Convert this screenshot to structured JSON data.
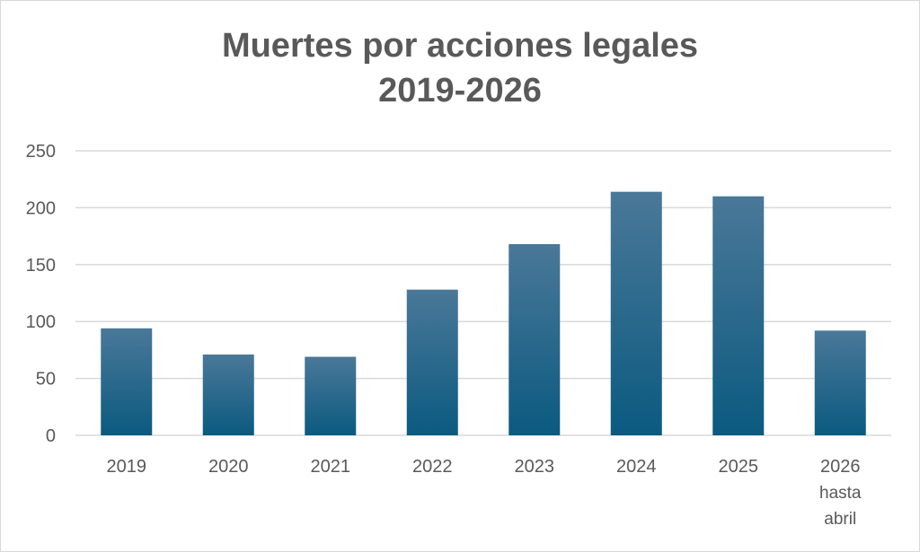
{
  "chart_data": {
    "type": "bar",
    "title_lines": [
      "Muertes por acciones legales",
      "2019-2026"
    ],
    "categories": [
      [
        "2019"
      ],
      [
        "2020"
      ],
      [
        "2021"
      ],
      [
        "2022"
      ],
      [
        "2023"
      ],
      [
        "2024"
      ],
      [
        "2025"
      ],
      [
        "2026",
        "hasta",
        "abril"
      ]
    ],
    "values": [
      94,
      71,
      69,
      128,
      168,
      214,
      210,
      92
    ],
    "ylim": [
      0,
      250
    ],
    "yticks": [
      "0",
      "50",
      "100",
      "150",
      "200",
      "250"
    ],
    "grid": true,
    "legend": "none",
    "bar_color_top": "#4a7898",
    "bar_color_bottom": "#0b5a80",
    "grid_color": "#d9d9d9",
    "text_color": "#595959"
  }
}
